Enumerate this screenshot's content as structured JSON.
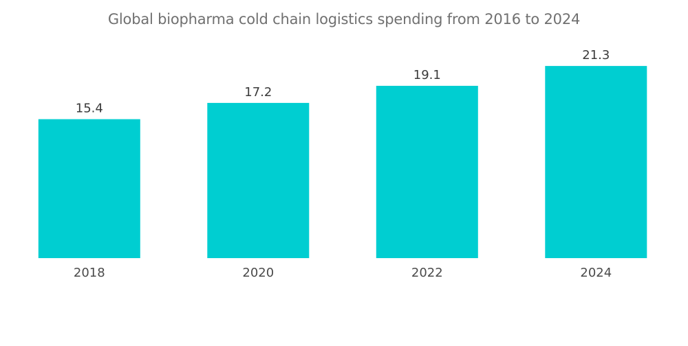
{
  "chart_data": {
    "type": "bar",
    "title": "Global biopharma cold chain logistics spending from 2016 to 2024",
    "categories": [
      "2018",
      "2020",
      "2022",
      "2024"
    ],
    "values": [
      15.4,
      17.2,
      19.1,
      21.3
    ],
    "value_labels": [
      "15.4",
      "17.2",
      "19.1",
      "21.3"
    ],
    "xlabel": "",
    "ylabel": "",
    "ylim": [
      0,
      24.5
    ],
    "grid": false,
    "legend": "none",
    "bar_color": "#00CED1"
  }
}
